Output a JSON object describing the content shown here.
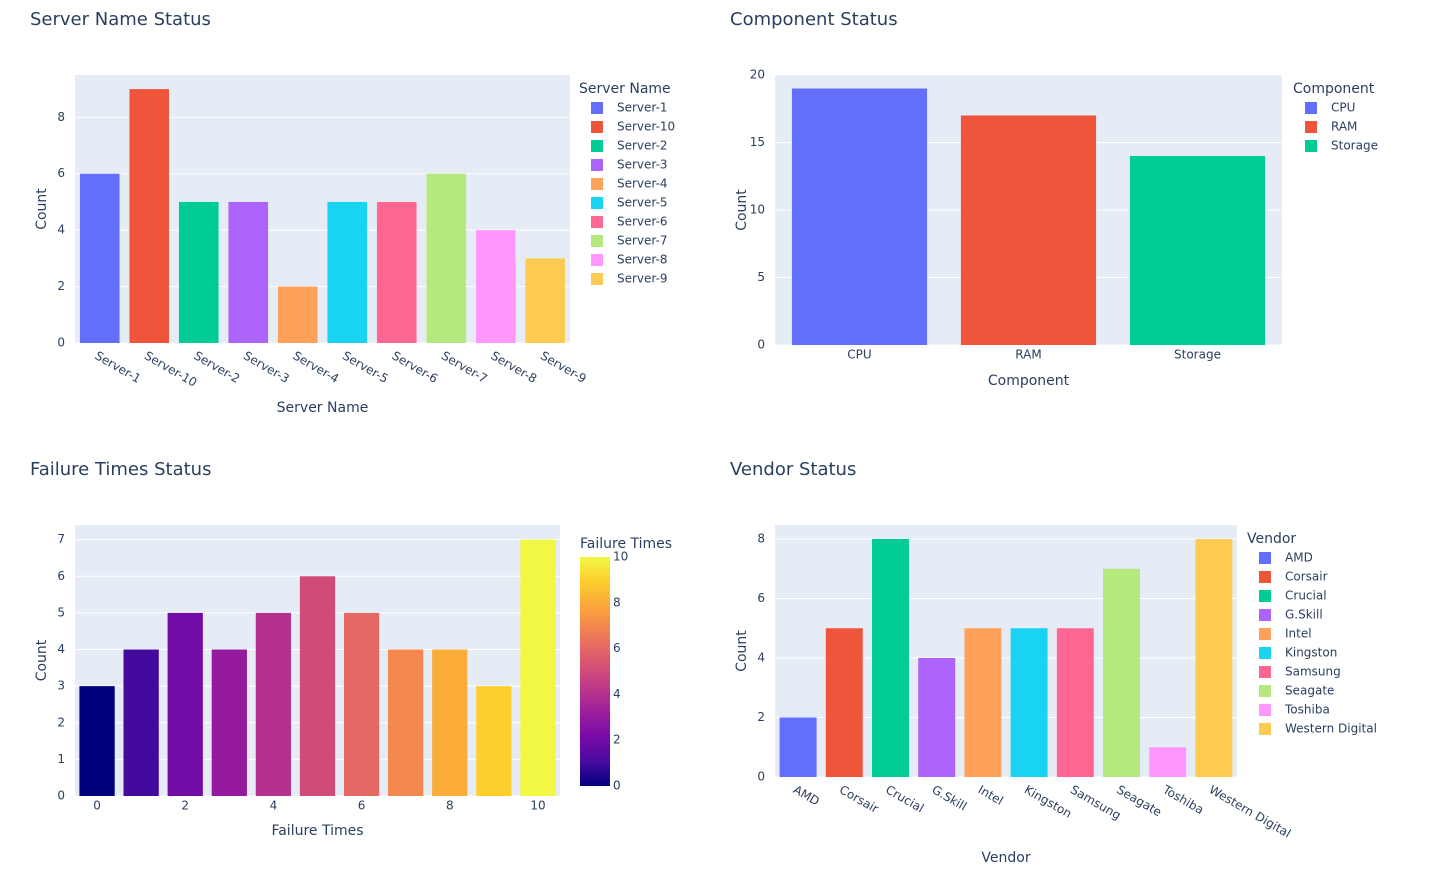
{
  "chart_data": [
    {
      "type": "bar",
      "title": "Server Name Status",
      "x_label": "Server Name",
      "y_label": "Count",
      "legend_title": "Server Name",
      "categories": [
        "Server-1",
        "Server-10",
        "Server-2",
        "Server-3",
        "Server-4",
        "Server-5",
        "Server-6",
        "Server-7",
        "Server-8",
        "Server-9"
      ],
      "values": [
        6,
        9,
        5,
        5,
        2,
        5,
        5,
        6,
        4,
        3
      ],
      "colors": [
        "#636efa",
        "#EF553B",
        "#00cc96",
        "#ab63fa",
        "#FFA15A",
        "#19d3f3",
        "#FF6692",
        "#B6E880",
        "#FF97FF",
        "#FECB52"
      ],
      "ylim": [
        0,
        9.5
      ],
      "yticks": [
        0,
        2,
        4,
        6,
        8
      ],
      "x_tick_angle": 30,
      "grid": true
    },
    {
      "type": "bar",
      "title": "Component Status",
      "x_label": "Component",
      "y_label": "Count",
      "legend_title": "Component",
      "categories": [
        "CPU",
        "RAM",
        "Storage"
      ],
      "values": [
        19,
        17,
        14
      ],
      "colors": [
        "#636efa",
        "#EF553B",
        "#00cc96"
      ],
      "ylim": [
        0,
        20
      ],
      "yticks": [
        0,
        5,
        10,
        15,
        20
      ],
      "x_tick_angle": 0,
      "grid": true
    },
    {
      "type": "bar",
      "title": "Failure Times Status",
      "x_label": "Failure Times",
      "y_label": "Count",
      "x": [
        0,
        1,
        2,
        3,
        4,
        5,
        6,
        7,
        8,
        9,
        10
      ],
      "values": [
        3,
        4,
        5,
        4,
        5,
        6,
        5,
        4,
        4,
        3,
        7
      ],
      "xlim": [
        -0.5,
        10.5
      ],
      "xticks": [
        0,
        2,
        4,
        6,
        8,
        10
      ],
      "ylim": [
        0,
        7.4
      ],
      "yticks": [
        0,
        1,
        2,
        3,
        4,
        5,
        6,
        7
      ],
      "colorscale": [
        "#00007f",
        "#4b0aa0",
        "#7a0ca8",
        "#a0209a",
        "#c23c86",
        "#dc5a6e",
        "#f07c55",
        "#fba43c",
        "#fccc2c",
        "#f2f745"
      ],
      "colorbar_title": "Failure Times",
      "colorbar_lim": [
        0,
        10
      ],
      "colorbar_ticks": [
        0,
        2,
        4,
        6,
        8,
        10
      ],
      "grid": true
    },
    {
      "type": "bar",
      "title": "Vendor Status",
      "x_label": "Vendor",
      "y_label": "Count",
      "legend_title": "Vendor",
      "categories": [
        "AMD",
        "Corsair",
        "Crucial",
        "G.Skill",
        "Intel",
        "Kingston",
        "Samsung",
        "Seagate",
        "Toshiba",
        "Western Digital"
      ],
      "values": [
        2,
        5,
        8,
        4,
        5,
        5,
        5,
        7,
        1,
        8
      ],
      "colors": [
        "#636efa",
        "#EF553B",
        "#00cc96",
        "#ab63fa",
        "#FFA15A",
        "#19d3f3",
        "#FF6692",
        "#B6E880",
        "#FF97FF",
        "#FECB52"
      ],
      "ylim": [
        0,
        8.47
      ],
      "yticks": [
        0,
        2,
        4,
        6,
        8
      ],
      "x_tick_angle": 30,
      "grid": true
    }
  ]
}
